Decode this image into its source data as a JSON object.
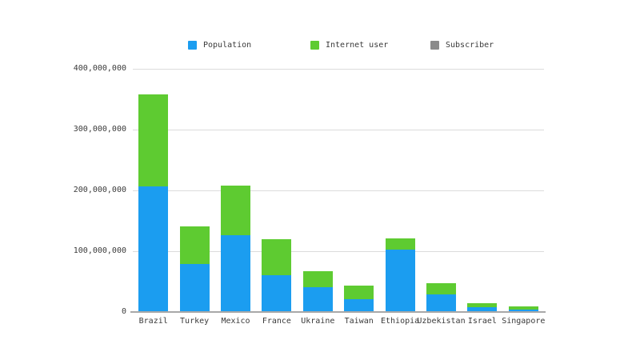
{
  "chart_data": {
    "type": "bar",
    "stacked": true,
    "title": "",
    "categories": [
      "Brazil",
      "Turkey",
      "Mexico",
      "France",
      "Ukraine",
      "Taiwan",
      "Ethiopia",
      "Uzbekistan",
      "Israel",
      "Singapore"
    ],
    "series": [
      {
        "name": "Population",
        "color": "#1b9df0",
        "values": [
          207000000,
          79000000,
          126000000,
          61000000,
          41000000,
          21000000,
          103000000,
          29000000,
          8000000,
          4000000
        ]
      },
      {
        "name": "Internet user",
        "color": "#5ecb31",
        "values": [
          151000000,
          62000000,
          81000000,
          59000000,
          26000000,
          22000000,
          19000000,
          18000000,
          7000000,
          5000000
        ]
      },
      {
        "name": "Subscriber",
        "color": "#8a8a8a",
        "values": [
          0,
          0,
          0,
          0,
          0,
          0,
          0,
          0,
          0,
          0
        ]
      }
    ],
    "ylim": [
      0,
      400000000
    ],
    "yticks": [
      0,
      100000000,
      200000000,
      300000000,
      400000000
    ],
    "ytick_labels": [
      "0",
      "100,000,000",
      "200,000,000",
      "300,000,000",
      "400,000,000"
    ],
    "grid": true,
    "legend_position": "top"
  }
}
